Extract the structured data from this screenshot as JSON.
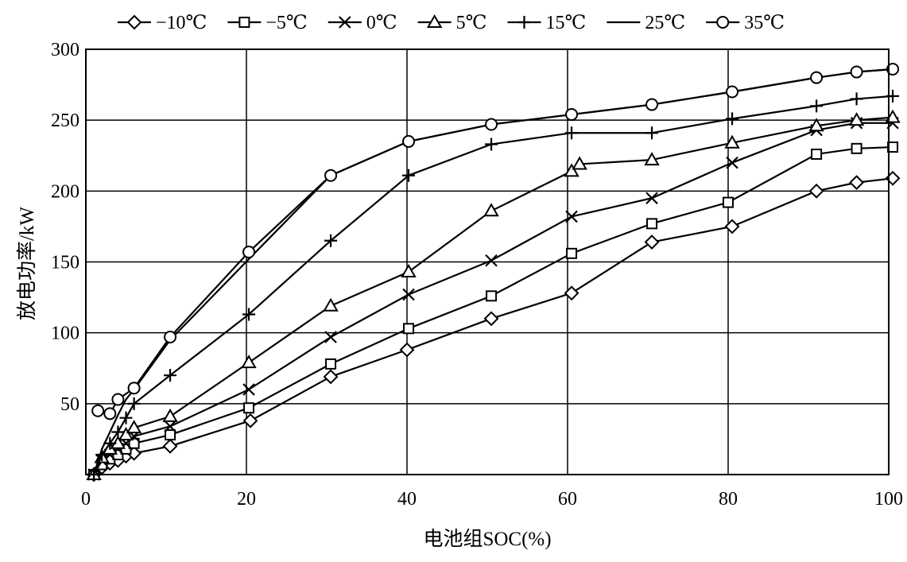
{
  "chart_data": {
    "type": "line",
    "xlabel": "电池组SOC(%)",
    "ylabel": "放电功率/kW",
    "xlim": [
      0,
      100
    ],
    "ylim": [
      0,
      300
    ],
    "x_ticks": [
      0,
      20,
      40,
      60,
      80,
      100
    ],
    "y_ticks": [
      50,
      100,
      150,
      200,
      250,
      300
    ],
    "grid": true,
    "legend_position": "top",
    "series": [
      {
        "name": "−10℃",
        "marker": "diamond",
        "x": [
          1,
          2,
          3,
          4,
          5,
          6,
          10.5,
          20.5,
          30.5,
          40,
          50.5,
          60.5,
          70.5,
          80.5,
          91,
          96,
          100.5
        ],
        "y": [
          0,
          5,
          8,
          10,
          13,
          15,
          20,
          38,
          69,
          88,
          110,
          128,
          164,
          175,
          200,
          206,
          209
        ]
      },
      {
        "name": "−5℃",
        "marker": "square",
        "x": [
          1,
          2,
          3,
          4,
          5,
          6,
          10.5,
          20.3,
          30.5,
          40.2,
          50.5,
          60.5,
          70.5,
          80,
          91,
          96,
          100.5
        ],
        "y": [
          0,
          7,
          11,
          14,
          18,
          22,
          28,
          47,
          78,
          103,
          126,
          156,
          177,
          192,
          226,
          230,
          231
        ]
      },
      {
        "name": "0℃",
        "marker": "x",
        "x": [
          1,
          2,
          3,
          4,
          5,
          6,
          10.5,
          20.3,
          30.5,
          40.2,
          50.5,
          60.5,
          70.5,
          80.5,
          91,
          96,
          100.5
        ],
        "y": [
          0,
          10,
          14,
          18,
          22,
          27,
          34,
          60,
          97,
          127,
          151,
          182,
          195,
          220,
          243,
          248,
          248
        ]
      },
      {
        "name": "5℃",
        "marker": "triangle",
        "x": [
          1,
          2,
          3,
          4,
          5,
          6,
          10.5,
          20.3,
          30.5,
          40.2,
          50.5,
          60.5,
          61.5,
          70.5,
          80.5,
          91,
          96,
          100.5
        ],
        "y": [
          0,
          12,
          18,
          22,
          28,
          33,
          41,
          79,
          119,
          143,
          186,
          214,
          219,
          222,
          234,
          246,
          250,
          252
        ]
      },
      {
        "name": "15℃",
        "marker": "plus",
        "x": [
          1,
          2,
          3,
          4,
          5,
          6,
          10.5,
          20.3,
          30.5,
          40.2,
          50.5,
          60.5,
          70.5,
          80.5,
          91,
          96,
          100.5
        ],
        "y": [
          0,
          14,
          22,
          30,
          40,
          50,
          70,
          113,
          165,
          211,
          233,
          241,
          241,
          251,
          260,
          265,
          267
        ]
      },
      {
        "name": "25℃",
        "marker": "none",
        "x": [
          1,
          2,
          3,
          4,
          5,
          6,
          10.5,
          20.3,
          30.5,
          40.2,
          50.5,
          60.5,
          70.5,
          80.5,
          91,
          96,
          100.5
        ],
        "y": [
          0,
          18,
          30,
          42,
          53,
          60,
          95,
          152,
          211,
          235,
          247,
          254,
          261,
          270,
          280,
          284,
          286
        ]
      },
      {
        "name": "35℃",
        "marker": "circle",
        "x": [
          1.5,
          3,
          4,
          6,
          10.5,
          20.3,
          30.5,
          40.2,
          50.5,
          60.5,
          70.5,
          80.5,
          91,
          96,
          100.5
        ],
        "y": [
          45,
          43,
          53,
          61,
          97,
          157,
          211,
          235,
          247,
          254,
          261,
          270,
          280,
          284,
          286
        ]
      }
    ]
  }
}
